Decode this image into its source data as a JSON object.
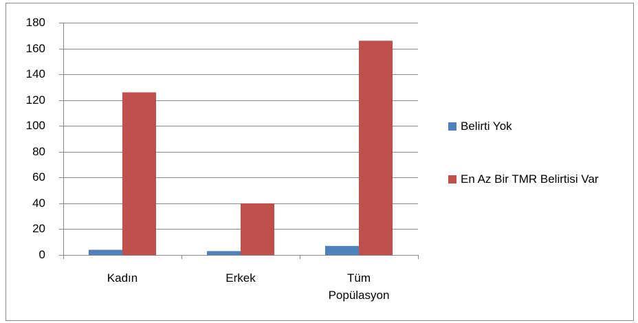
{
  "chart_data": {
    "type": "bar",
    "categories": [
      "Kadın",
      "Erkek",
      "Tüm Popülasyon"
    ],
    "series": [
      {
        "name": "Belirti Yok",
        "color": "#4f81bd",
        "values": [
          4,
          3,
          7
        ]
      },
      {
        "name": "En Az Bir TMR Belirtisi Var",
        "color": "#c0504d",
        "values": [
          126,
          40,
          166
        ]
      }
    ],
    "ylim": [
      0,
      180
    ],
    "yticks": [
      0,
      20,
      40,
      60,
      80,
      100,
      120,
      140,
      160,
      180
    ],
    "grid": true,
    "legend": "right"
  }
}
